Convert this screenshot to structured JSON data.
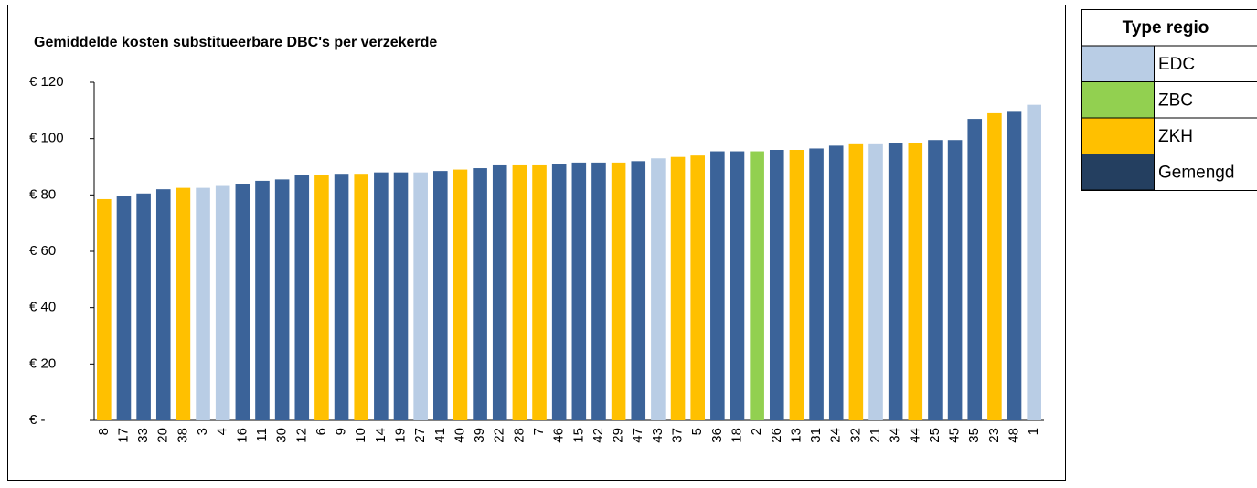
{
  "chart_data": {
    "type": "bar",
    "title": "Gemiddelde kosten substitueerbare DBC's per verzekerde",
    "categories": [
      "8",
      "17",
      "33",
      "20",
      "38",
      "3",
      "4",
      "16",
      "11",
      "30",
      "12",
      "6",
      "9",
      "10",
      "14",
      "19",
      "27",
      "41",
      "40",
      "39",
      "22",
      "28",
      "7",
      "46",
      "15",
      "42",
      "29",
      "47",
      "43",
      "37",
      "5",
      "36",
      "18",
      "2",
      "26",
      "13",
      "31",
      "24",
      "32",
      "21",
      "34",
      "44",
      "25",
      "45",
      "35",
      "23",
      "48",
      "1"
    ],
    "values": [
      78.5,
      79.5,
      80.5,
      82,
      82.5,
      82.5,
      83.5,
      84,
      85,
      85.5,
      87,
      87,
      87.5,
      87.5,
      88,
      88,
      88,
      88.5,
      89,
      89.5,
      90.5,
      90.5,
      90.5,
      91,
      91.5,
      91.5,
      91.5,
      92,
      93,
      93.5,
      94,
      95.5,
      95.5,
      95.5,
      96,
      96,
      96.5,
      97.5,
      98,
      98,
      98.5,
      98.5,
      99.5,
      99.5,
      107,
      109,
      109.5,
      112
    ],
    "colors": [
      "#ffc000",
      "#3b6399",
      "#3b6399",
      "#3b6399",
      "#ffc000",
      "#b9cde5",
      "#b9cde5",
      "#3b6399",
      "#3b6399",
      "#3b6399",
      "#3b6399",
      "#ffc000",
      "#3b6399",
      "#ffc000",
      "#3b6399",
      "#3b6399",
      "#b9cde5",
      "#3b6399",
      "#ffc000",
      "#3b6399",
      "#3b6399",
      "#ffc000",
      "#ffc000",
      "#3b6399",
      "#3b6399",
      "#3b6399",
      "#ffc000",
      "#3b6399",
      "#b9cde5",
      "#ffc000",
      "#ffc000",
      "#3b6399",
      "#3b6399",
      "#92d050",
      "#3b6399",
      "#ffc000",
      "#3b6399",
      "#3b6399",
      "#ffc000",
      "#b9cde5",
      "#3b6399",
      "#ffc000",
      "#3b6399",
      "#3b6399",
      "#3b6399",
      "#ffc000",
      "#3b6399",
      "#b9cde5"
    ],
    "ylim": [
      0,
      120
    ],
    "yticks": [
      {
        "value": 0,
        "label": "€ -"
      },
      {
        "value": 20,
        "label": "€ 20"
      },
      {
        "value": 40,
        "label": "€ 40"
      },
      {
        "value": 60,
        "label": "€ 60"
      },
      {
        "value": 80,
        "label": "€ 80"
      },
      {
        "value": 100,
        "label": "€ 100"
      },
      {
        "value": 120,
        "label": "€ 120"
      }
    ],
    "legend": {
      "title": "Type regio",
      "items": [
        {
          "name": "EDC",
          "color": "#b9cde5"
        },
        {
          "name": "ZBC",
          "color": "#92d050"
        },
        {
          "name": "ZKH",
          "color": "#ffc000"
        },
        {
          "name": "Gemengd",
          "color": "#243f60"
        }
      ]
    }
  }
}
